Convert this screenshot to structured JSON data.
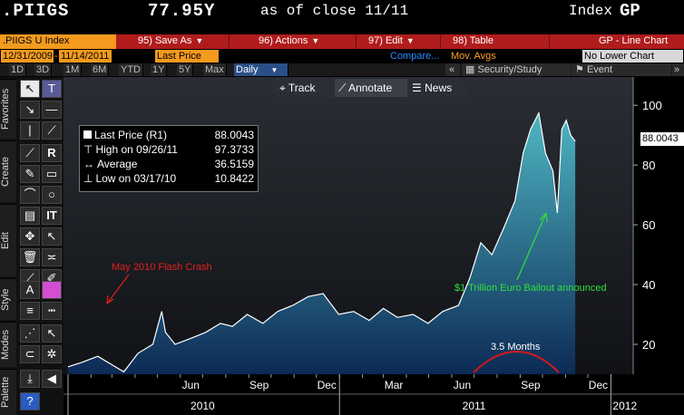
{
  "title": {
    "ticker": ".PIIGS",
    "price": "77.95Y",
    "as_of": "as of close 11/11",
    "index_label": "Index",
    "function": "GP"
  },
  "func_bar": {
    "security": ".PIIGS U Index",
    "save_as": "95) Save As",
    "actions": "96) Actions",
    "edit": "97) Edit",
    "table": "98) Table",
    "chart_type": "GP - Line Chart"
  },
  "date_bar": {
    "start_date": "12/31/2009",
    "end_date": "11/14/2011",
    "field": "Last Price",
    "compare": "Compare...",
    "mov_avgs": "Mov. Avgs",
    "lower_chart": "No Lower Chart"
  },
  "periods": [
    "1D",
    "3D",
    "1M",
    "6M",
    "YTD",
    "1Y",
    "5Y",
    "Max"
  ],
  "frequency": "Daily",
  "period_right": {
    "collapse": "«",
    "security_study": "Security/Study",
    "event": "Event",
    "scroll": "»"
  },
  "toolbar_groups": [
    "Favorites",
    "Create",
    "Edit",
    "Style",
    "Modes",
    "Palette"
  ],
  "chart_toolbar": {
    "track": "Track",
    "annotate": "Annotate",
    "news": "News"
  },
  "legend": {
    "last_label": "Last Price (R1)",
    "last_value": "88.0043",
    "high_label": "High on 09/26/11",
    "high_value": "97.3733",
    "avg_label": "Average",
    "avg_value": "36.5159",
    "low_label": "Low on 03/17/10",
    "low_value": "10.8422"
  },
  "annotations": {
    "flash_crash": "May 2010 Flash Crash",
    "bailout": "$1 Trillion Euro Bailout announced",
    "months": "3.5 Months"
  },
  "last_price_tag": "88.0043",
  "colors": {
    "line": "#ffffff",
    "area_top": "#4fb6c3",
    "area_bottom": "#0c2a55",
    "flash_crash": "#e0201c",
    "bailout": "#2ee03a",
    "arc": "#d81818",
    "func_bar": "#b01c1c",
    "field_orange": "#f39a1f"
  },
  "chart_data": {
    "type": "area",
    "y_ticks": [
      20,
      40,
      60,
      80,
      100
    ],
    "ylim": [
      10,
      104
    ],
    "x_ticks": [
      "Jun",
      "Sep",
      "Dec",
      "Mar",
      "Jun",
      "Sep",
      "Dec"
    ],
    "years": [
      "2010",
      "2011",
      "2012"
    ],
    "x_start": "2010-01-01",
    "x_end": "2012-01-31",
    "series": [
      {
        "name": ".PIIGS U Index",
        "x": [
          "2010-01-01",
          "2010-01-20",
          "2010-02-10",
          "2010-03-17",
          "2010-04-05",
          "2010-04-25",
          "2010-05-07",
          "2010-05-12",
          "2010-05-25",
          "2010-06-15",
          "2010-07-05",
          "2010-07-25",
          "2010-08-10",
          "2010-08-30",
          "2010-09-20",
          "2010-10-10",
          "2010-10-30",
          "2010-11-20",
          "2010-12-10",
          "2010-12-31",
          "2011-01-20",
          "2011-02-10",
          "2011-03-01",
          "2011-03-20",
          "2011-04-10",
          "2011-04-30",
          "2011-05-20",
          "2011-06-10",
          "2011-06-25",
          "2011-07-10",
          "2011-07-25",
          "2011-08-10",
          "2011-08-25",
          "2011-09-05",
          "2011-09-15",
          "2011-09-26",
          "2011-10-05",
          "2011-10-15",
          "2011-10-21",
          "2011-10-27",
          "2011-11-02",
          "2011-11-08",
          "2011-11-14"
        ],
        "values": [
          12.5,
          14,
          16,
          10.8,
          17,
          20,
          31,
          24,
          20,
          22,
          24,
          27,
          26,
          30,
          27,
          31,
          33,
          36,
          37,
          30,
          31,
          28,
          32,
          29,
          30,
          27,
          31,
          33,
          42,
          54,
          50,
          59,
          68,
          84,
          92,
          97.4,
          84,
          78,
          64,
          92,
          95,
          90,
          88
        ]
      }
    ]
  }
}
